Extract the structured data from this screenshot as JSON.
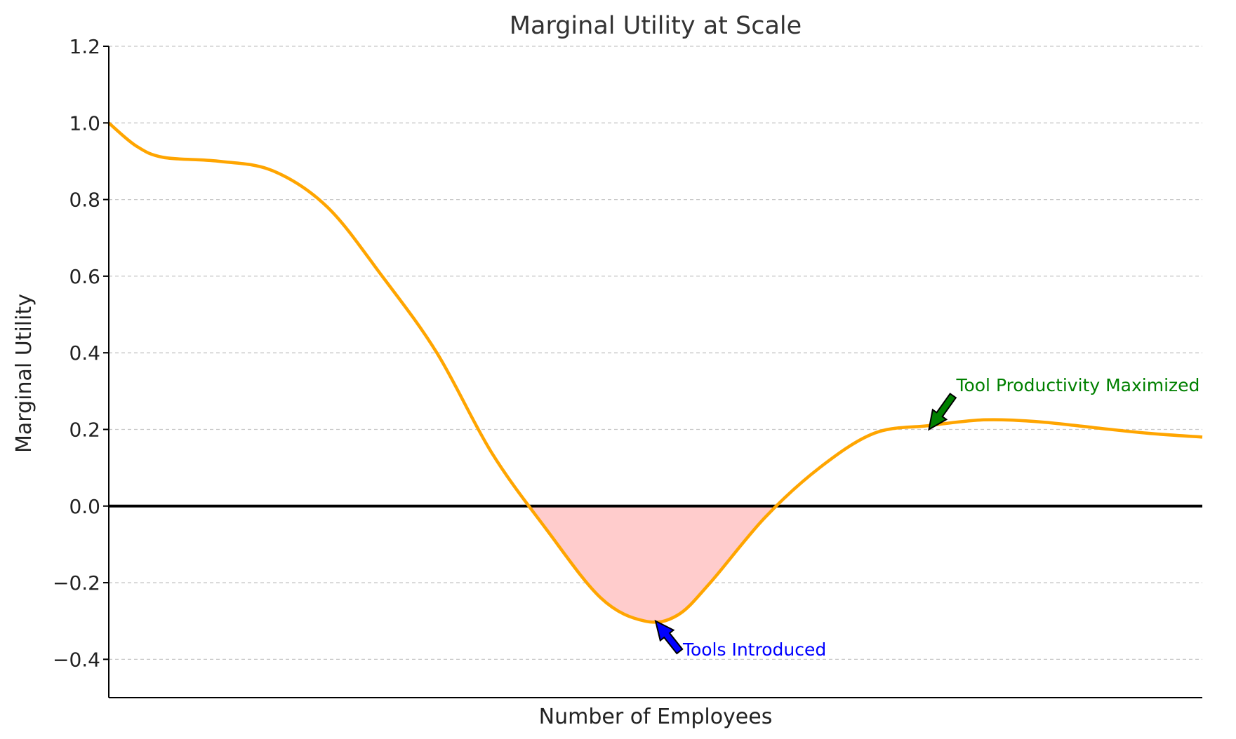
{
  "chart_data": {
    "type": "line",
    "title": "Marginal Utility at Scale",
    "xlabel": "Number of Employees",
    "ylabel": "Marginal Utility",
    "xlim": [
      0,
      10
    ],
    "ylim": [
      -0.5,
      1.2
    ],
    "yticks": [
      1.2,
      1.0,
      0.8,
      0.6,
      0.4,
      0.2,
      0.0,
      -0.2,
      -0.4
    ],
    "ytick_labels": [
      "1.2",
      "1.0",
      "0.8",
      "0.6",
      "0.4",
      "0.2",
      "0.0",
      "−0.2",
      "−0.4"
    ],
    "x_ticks_shown": false,
    "grid": "horizontal dashed",
    "zero_line": true,
    "series": [
      {
        "color": "#ffa500",
        "x": [
          0,
          0.25,
          0.5,
          1.0,
          1.5,
          2.0,
          2.5,
          3.0,
          3.5,
          4.0,
          4.5,
          4.9,
          5.2,
          5.5,
          6.0,
          6.5,
          7.0,
          7.5,
          8.0,
          8.5,
          9.0,
          9.5,
          10.0
        ],
        "y": [
          1.0,
          0.94,
          0.91,
          0.9,
          0.875,
          0.78,
          0.6,
          0.4,
          0.14,
          -0.06,
          -0.24,
          -0.3,
          -0.285,
          -0.2,
          -0.03,
          0.1,
          0.19,
          0.21,
          0.225,
          0.22,
          0.205,
          0.19,
          0.18
        ]
      }
    ],
    "shaded_region": {
      "color": "#ffcccc",
      "where": "below zero",
      "x_range": [
        3.75,
        6.25
      ]
    },
    "annotations": [
      {
        "text": "Tools Introduced",
        "color": "#0000ff",
        "arrow_color": "#0000ff",
        "point": [
          5.0,
          -0.3
        ],
        "text_at": [
          5.25,
          -0.39
        ]
      },
      {
        "text": "Tool Productivity Maximized",
        "color": "#008000",
        "arrow_color": "#008000",
        "point": [
          7.5,
          0.2
        ],
        "text_at": [
          7.75,
          0.3
        ]
      }
    ]
  }
}
